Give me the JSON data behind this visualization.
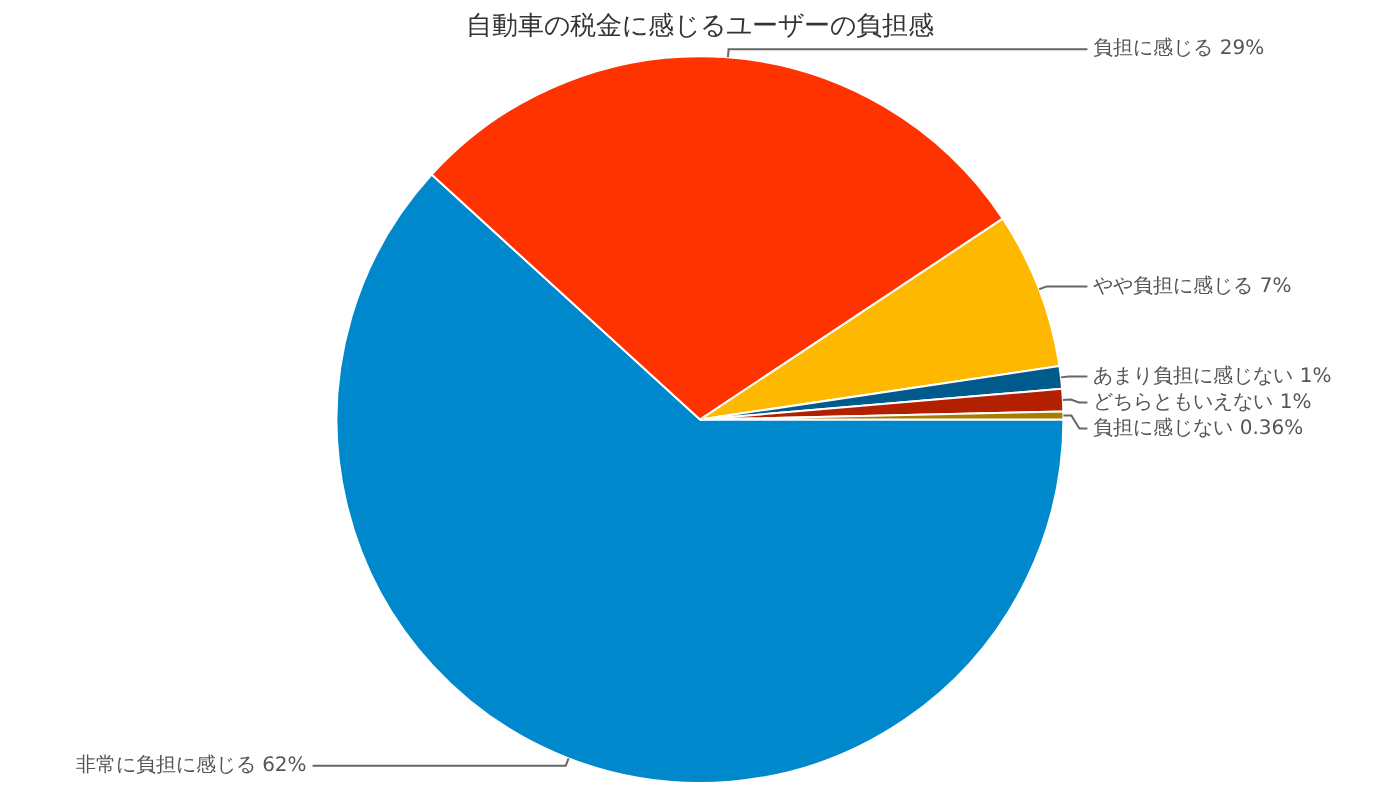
{
  "chart_data": {
    "type": "pie",
    "title": "自動車の税金に感じるユーザーの負担感",
    "categories": [
      "非常に負担に感じる",
      "負担に感じる",
      "やや負担に感じる",
      "あまり負担に感じない",
      "どちらともいえない",
      "負担に感じない"
    ],
    "values": [
      62,
      29,
      7,
      1,
      1,
      0.36
    ],
    "value_labels": [
      "62%",
      "29%",
      "7%",
      "1%",
      "1%",
      "0.36%"
    ],
    "colors": [
      "#0088cc",
      "#ff3300",
      "#ffb800",
      "#005a8c",
      "#b32000",
      "#a87c00"
    ],
    "legend": false
  }
}
